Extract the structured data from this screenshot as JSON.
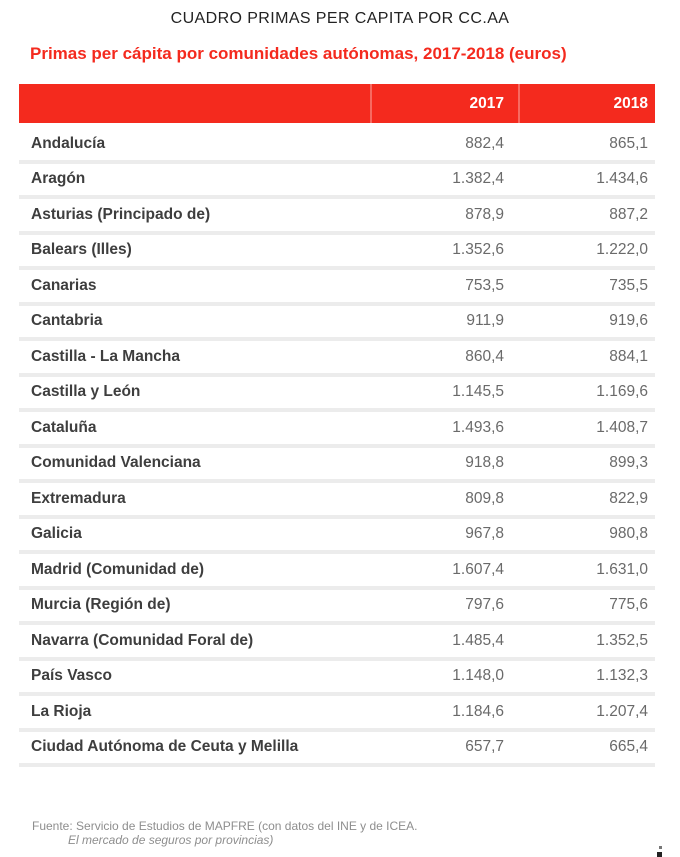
{
  "page": {
    "kicker": "CUADRO PRIMAS PER CAPITA POR CC.AA",
    "title": "Primas per cápita por comunidades autónomas, 2017-2018 (euros)"
  },
  "table": {
    "columns": [
      "2017",
      "2018"
    ],
    "rows": [
      {
        "region": "Andalucía",
        "y2017": "882,4",
        "y2018": "865,1"
      },
      {
        "region": "Aragón",
        "y2017": "1.382,4",
        "y2018": "1.434,6"
      },
      {
        "region": "Asturias (Principado de)",
        "y2017": "878,9",
        "y2018": "887,2"
      },
      {
        "region": "Balears (Illes)",
        "y2017": "1.352,6",
        "y2018": "1.222,0"
      },
      {
        "region": "Canarias",
        "y2017": "753,5",
        "y2018": "735,5"
      },
      {
        "region": "Cantabria",
        "y2017": "911,9",
        "y2018": "919,6"
      },
      {
        "region": "Castilla - La Mancha",
        "y2017": "860,4",
        "y2018": "884,1"
      },
      {
        "region": "Castilla y León",
        "y2017": "1.145,5",
        "y2018": "1.169,6"
      },
      {
        "region": "Cataluña",
        "y2017": "1.493,6",
        "y2018": "1.408,7"
      },
      {
        "region": "Comunidad Valenciana",
        "y2017": "918,8",
        "y2018": "899,3"
      },
      {
        "region": "Extremadura",
        "y2017": "809,8",
        "y2018": "822,9"
      },
      {
        "region": "Galicia",
        "y2017": "967,8",
        "y2018": "980,8"
      },
      {
        "region": "Madrid (Comunidad de)",
        "y2017": "1.607,4",
        "y2018": "1.631,0"
      },
      {
        "region": "Murcia (Región de)",
        "y2017": "797,6",
        "y2018": "775,6"
      },
      {
        "region": "Navarra (Comunidad Foral de)",
        "y2017": "1.485,4",
        "y2018": "1.352,5"
      },
      {
        "region": "País Vasco",
        "y2017": "1.148,0",
        "y2018": "1.132,3"
      },
      {
        "region": "La Rioja",
        "y2017": "1.184,6",
        "y2018": "1.207,4"
      },
      {
        "region": "Ciudad Autónoma  de Ceuta y Melilla",
        "y2017": "657,7",
        "y2018": "665,4"
      }
    ]
  },
  "footer": {
    "line1": "Fuente: Servicio de Estudios de MAPFRE (con datos del INE y de ICEA.",
    "line2": "El mercado de seguros por provincias)"
  },
  "colors": {
    "accent_red": "#f42a1e",
    "header_text": "#ffffff",
    "region_text": "#3e3e3e",
    "value_text": "#6a6a6a",
    "separator": "#ececec",
    "footer_text": "#8e8e8e",
    "kicker_text": "#222222"
  },
  "chart_data": {
    "type": "table",
    "title": "Primas per cápita por comunidades autónomas, 2017-2018 (euros)",
    "kicker": "CUADRO PRIMAS PER CAPITA POR CC.AA",
    "categories": [
      "Andalucía",
      "Aragón",
      "Asturias (Principado de)",
      "Balears (Illes)",
      "Canarias",
      "Cantabria",
      "Castilla - La Mancha",
      "Castilla y León",
      "Cataluña",
      "Comunidad Valenciana",
      "Extremadura",
      "Galicia",
      "Madrid (Comunidad de)",
      "Murcia (Región de)",
      "Navarra (Comunidad Foral de)",
      "País Vasco",
      "La Rioja",
      "Ciudad Autónoma de Ceuta y Melilla"
    ],
    "series": [
      {
        "name": "2017",
        "values": [
          882.4,
          1382.4,
          878.9,
          1352.6,
          753.5,
          911.9,
          860.4,
          1145.5,
          1493.6,
          918.8,
          809.8,
          967.8,
          1607.4,
          797.6,
          1485.4,
          1148.0,
          1184.6,
          657.7
        ]
      },
      {
        "name": "2018",
        "values": [
          865.1,
          1434.6,
          887.2,
          1222.0,
          735.5,
          919.6,
          884.1,
          1169.6,
          1408.7,
          899.3,
          822.9,
          980.8,
          1631.0,
          775.6,
          1352.5,
          1132.3,
          1207.4,
          665.4
        ]
      }
    ],
    "units": "euros",
    "source": "Fuente: Servicio de Estudios de MAPFRE (con datos del INE y de ICEA. El mercado de seguros por provincias)"
  }
}
